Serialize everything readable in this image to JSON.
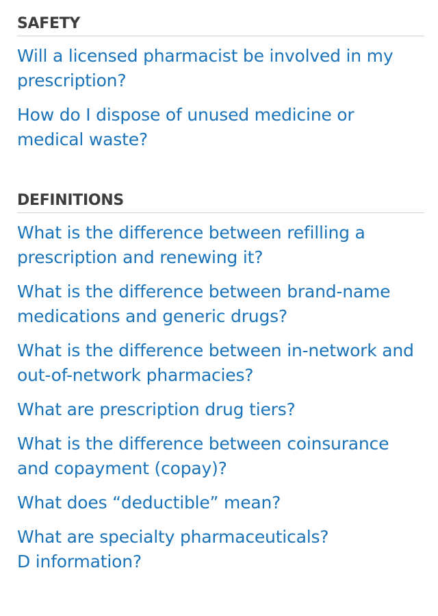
{
  "sections": [
    {
      "title": "SAFETY",
      "items": [
        "Will a licensed pharmacist be involved in my prescription?",
        "How do I dispose of unused medicine or medical waste?"
      ]
    },
    {
      "title": "DEFINITIONS",
      "items": [
        "What is the difference between refilling a prescription and renewing it?",
        "What is the difference between brand-name medications and generic drugs?",
        "What is the difference between in-network and out-of-network pharmacies?",
        "What are prescription drug tiers?",
        "What is the difference between coinsurance and copayment (copay)?",
        "What does “deductible” mean?",
        "What are specialty pharmaceuticals?\nD information?"
      ]
    }
  ],
  "colors": {
    "link": "#1a73b8",
    "header": "#3d3d3d",
    "divider": "#d2d2d2",
    "background": "#ffffff"
  }
}
